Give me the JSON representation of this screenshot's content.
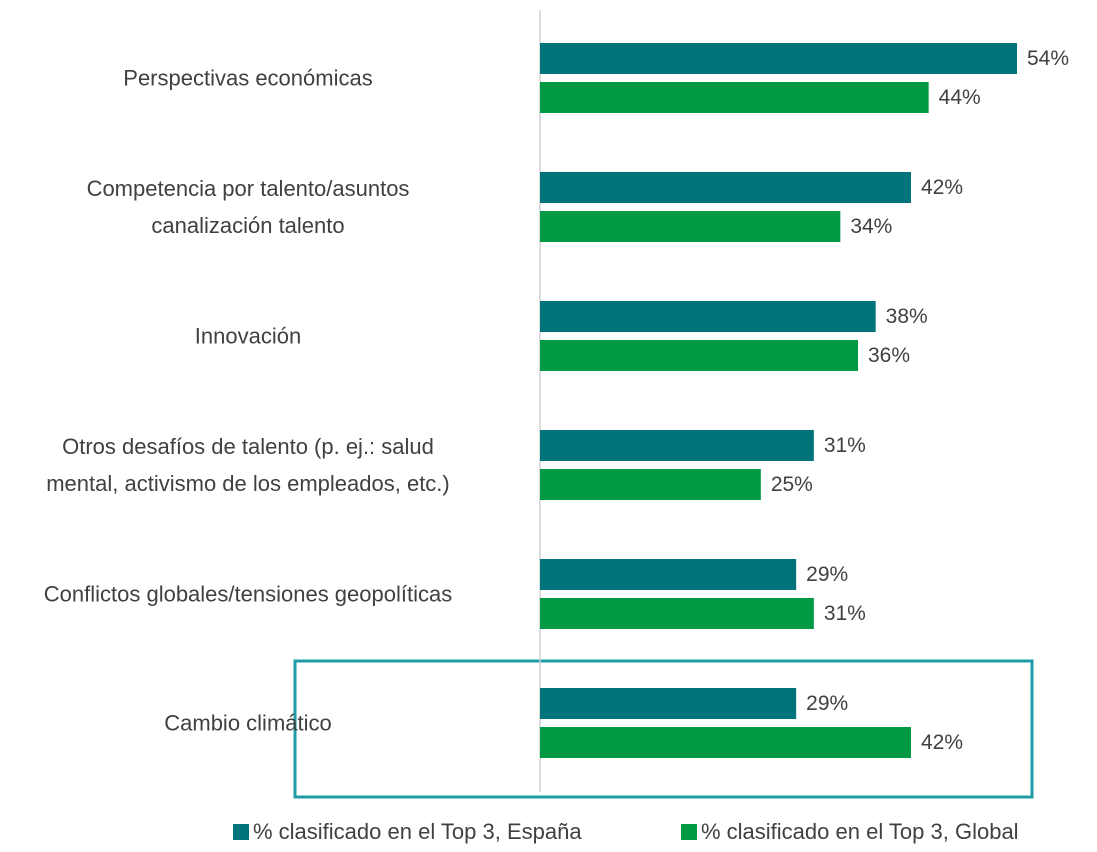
{
  "chart_data": {
    "type": "barh",
    "categories": [
      "Perspectivas económicas",
      "Competencia por talento/asuntos\ncanalización talento",
      "Innovación",
      "Otros desafíos de talento (p. ej.: salud\nmental, activismo de los empleados, etc.)",
      "Conflictos globales/tensiones geopolíticas",
      "Cambio climático"
    ],
    "series": [
      {
        "name": "% clasificado en el Top 3, España",
        "color": "#00747a",
        "values": [
          54,
          42,
          38,
          31,
          29,
          29
        ],
        "value_labels": [
          "54%",
          "42%",
          "38%",
          "31%",
          "29%",
          "29%"
        ]
      },
      {
        "name": "% clasificado en el Top 3, Global",
        "color": "#009a44",
        "values": [
          44,
          34,
          36,
          25,
          31,
          42
        ],
        "value_labels": [
          "44%",
          "34%",
          "36%",
          "25%",
          "31%",
          "42%"
        ]
      }
    ],
    "xlim": [
      0,
      60
    ],
    "legend": "bottom"
  }
}
